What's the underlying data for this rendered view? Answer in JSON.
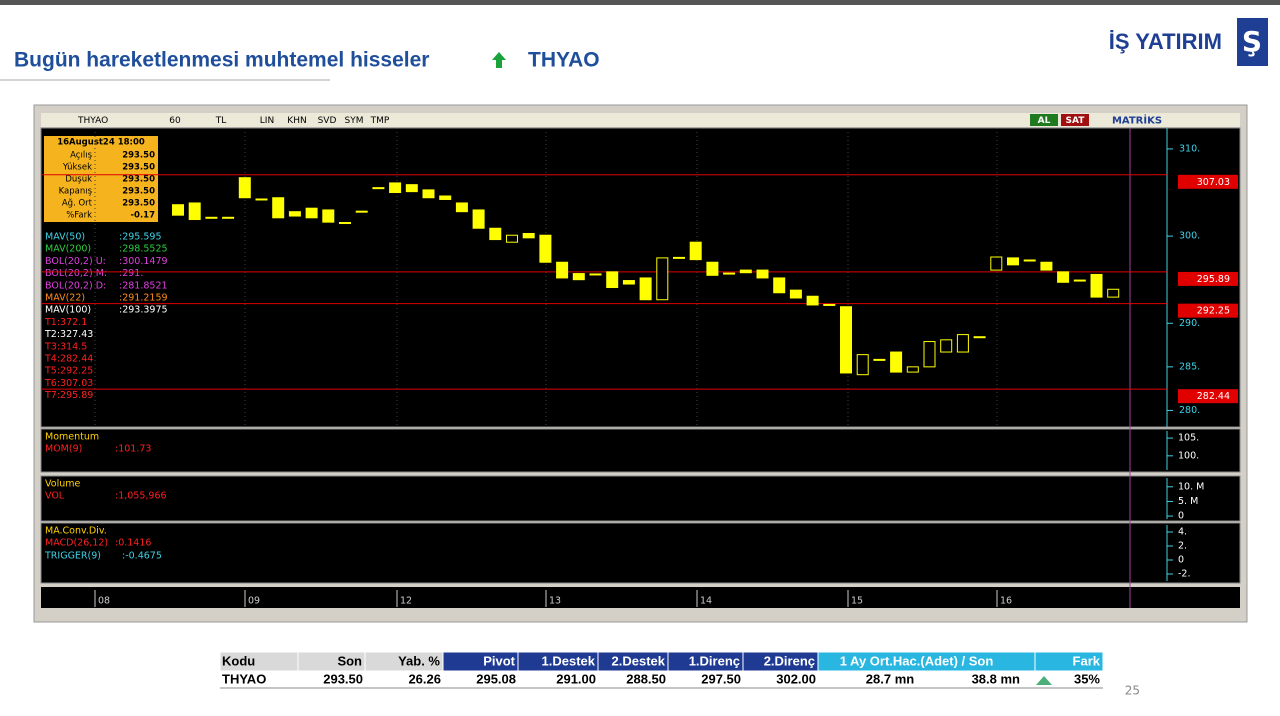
{
  "header": {
    "title": "Bugün hareketlenmesi muhtemel hisseler",
    "symbol": "THYAO",
    "logo": "İŞ YATIRIM"
  },
  "toolbar": {
    "items": [
      "THYAO",
      "60",
      "TL",
      "LIN",
      "KHN",
      "SVD",
      "SYM",
      "TMP"
    ],
    "buy": "AL",
    "sell": "SAT",
    "brand": "MATRİKS"
  },
  "info": {
    "title": "16August24 18:00",
    "labels": [
      "Açılış",
      "Yüksek",
      "Düşük",
      "Kapanış",
      "Ağ. Ort",
      "%Fark"
    ],
    "values": [
      "293.50",
      "293.50",
      "293.50",
      "293.50",
      "293.50",
      "-0.17"
    ]
  },
  "legend": {
    "names": [
      "MAV(50)",
      "MAV(200)",
      "BOL(20,2) U:",
      "BOL(20,2) M:",
      "BOL(20,2) D:",
      "MAV(22)",
      "MAV(100)",
      "T1:372.1",
      "T2:327.43",
      "T3:314.5",
      "T4:282.44",
      "T5:292.25",
      "T6:307.03",
      "T7:295.89"
    ],
    "values": [
      ":295.595",
      ":298.5525",
      ":300.1479",
      ":291.",
      ":281.8521",
      ":291.2159",
      ":293.3975",
      "",
      "",
      "",
      "",
      "",
      "",
      ""
    ],
    "colors": [
      "#3fd2e6",
      "#2ecc40",
      "#e040e0",
      "#e040e0",
      "#e040e0",
      "#ff8c1a",
      "#ffffff",
      "#ff2020",
      "#ffffff",
      "#ff2020",
      "#ff2020",
      "#ff2020",
      "#ff2020",
      "#ff2020"
    ]
  },
  "chart": {
    "type": "candlestick",
    "ylim": [
      278.1,
      312.4
    ],
    "yticks": [
      {
        "value": 310,
        "label": "310."
      },
      {
        "value": 300,
        "label": "300."
      },
      {
        "value": 290,
        "label": "290."
      },
      {
        "value": 285,
        "label": "285."
      },
      {
        "value": 280,
        "label": "280."
      }
    ],
    "open": [
      303.6,
      303.8,
      302.1,
      302.1,
      306.7,
      304.2,
      304.4,
      302.8,
      303.2,
      303.0,
      301.5,
      302.8,
      305.5,
      306.1,
      305.9,
      305.3,
      304.6,
      303.8,
      303.0,
      300.9,
      299.3,
      300.3,
      300.1,
      297.0,
      295.7,
      295.6,
      295.9,
      294.9,
      295.2,
      292.7,
      297.5,
      299.3,
      297.0,
      295.7,
      296.1,
      296.1,
      295.2,
      293.8,
      293.1,
      292.1,
      291.9,
      284.1,
      285.8,
      286.7,
      284.4,
      285.0,
      286.7,
      286.7,
      288.4,
      296.1,
      297.5,
      297.2,
      297.0,
      295.9,
      294.9,
      295.6,
      293.0
    ],
    "close": [
      302.4,
      301.9,
      302.1,
      302.1,
      304.4,
      304.2,
      302.1,
      302.3,
      302.1,
      301.6,
      301.5,
      302.8,
      305.5,
      305.0,
      305.1,
      304.4,
      304.2,
      302.8,
      300.9,
      299.6,
      300.1,
      299.8,
      297.0,
      295.2,
      295.0,
      295.6,
      294.1,
      294.5,
      292.7,
      297.5,
      297.5,
      297.3,
      295.5,
      295.7,
      295.8,
      295.2,
      293.5,
      292.9,
      292.1,
      292.1,
      284.3,
      286.4,
      285.8,
      284.4,
      285.0,
      287.9,
      288.1,
      288.7,
      288.4,
      297.6,
      296.7,
      297.2,
      296.1,
      294.7,
      294.9,
      293.0,
      293.9
    ],
    "color": "#ffff00",
    "level_color": "#e00000",
    "levels": [
      307.03,
      295.89,
      292.25,
      282.44
    ],
    "dates": [
      "08",
      "09",
      "12",
      "13",
      "14",
      "15",
      "16"
    ]
  },
  "momentum": {
    "title": "Momentum",
    "name": "MOM(9)",
    "value": ":101.73",
    "ylim": [
      96,
      107
    ],
    "yticks": [
      {
        "value": 105,
        "label": "105."
      },
      {
        "value": 100,
        "label": "100."
      }
    ]
  },
  "volume": {
    "title": "Volume",
    "name": "VOL",
    "value": ":1,055,966",
    "ylim": [
      -1,
      13
    ],
    "yticks": [
      {
        "value": 10,
        "label": "10. M"
      },
      {
        "value": 5,
        "label": "5. M"
      },
      {
        "value": 0,
        "label": "0"
      }
    ]
  },
  "macd": {
    "title": "MA.Conv.Div.",
    "name": "MACD(26,12)",
    "value": ":0.1416",
    "trigger": "TRIGGER(9)",
    "trigger_value": ":-0.4675",
    "ylim": [
      -3,
      5
    ],
    "yticks": [
      {
        "value": 4,
        "label": "4."
      },
      {
        "value": 2,
        "label": "2."
      },
      {
        "value": 0,
        "label": "0"
      },
      {
        "value": -2,
        "label": "-2."
      }
    ]
  },
  "table": {
    "headers": [
      "Kodu",
      "Son",
      "Yab. %",
      "Pivot",
      "1.Destek",
      "2.Destek",
      "1.Direnç",
      "2.Direnç",
      "1 Ay Ort.Hac.(Adet) / Son",
      "Fark"
    ],
    "row": [
      "THYAO",
      "293.50",
      "26.26",
      "295.08",
      "291.00",
      "288.50",
      "297.50",
      "302.00",
      "28.7 mn",
      "38.8 mn",
      "35%"
    ]
  },
  "page_number": "25"
}
